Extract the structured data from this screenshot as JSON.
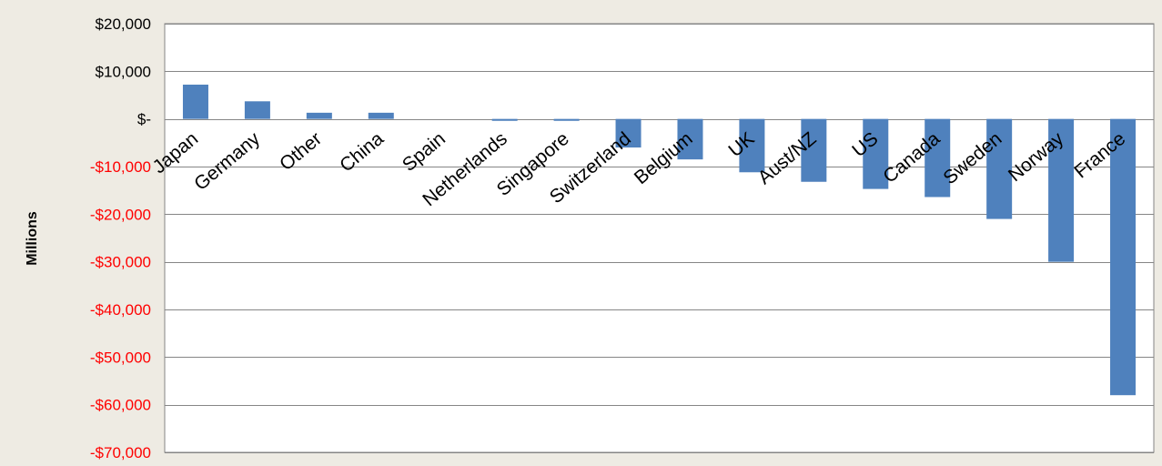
{
  "chart_data": {
    "type": "bar",
    "title": "",
    "xlabel": "",
    "ylabel": "Millions",
    "ylim": [
      -70000,
      20000
    ],
    "y_ticks": [
      20000,
      10000,
      0,
      -10000,
      -20000,
      -30000,
      -40000,
      -50000,
      -60000,
      -70000
    ],
    "y_tick_labels": [
      "$20,000",
      "$10,000",
      "$-",
      "-$10,000",
      "-$20,000",
      "-$30,000",
      "-$40,000",
      "-$50,000",
      "-$60,000",
      "-$70,000"
    ],
    "grid": true,
    "legend": "none",
    "categories": [
      "Japan",
      "Germany",
      "Other",
      "China",
      "Spain",
      "Netherlands",
      "Singapore",
      "Switzerland",
      "Belgium",
      "UK",
      "Aust/NZ",
      "US",
      "Canada",
      "Sweden",
      "Norway",
      "France"
    ],
    "values": [
      7200,
      3700,
      1300,
      1300,
      0,
      -400,
      -400,
      -6000,
      -8500,
      -11200,
      -13200,
      -14700,
      -16400,
      -21000,
      -30000,
      -58000
    ],
    "colors": {
      "bar": "#4f81bd",
      "positive_tick": "#000000",
      "negative_tick": "#ff0000",
      "plot_bg": "#ffffff",
      "page_bg": "#eeebe3",
      "grid": "#868686"
    }
  }
}
